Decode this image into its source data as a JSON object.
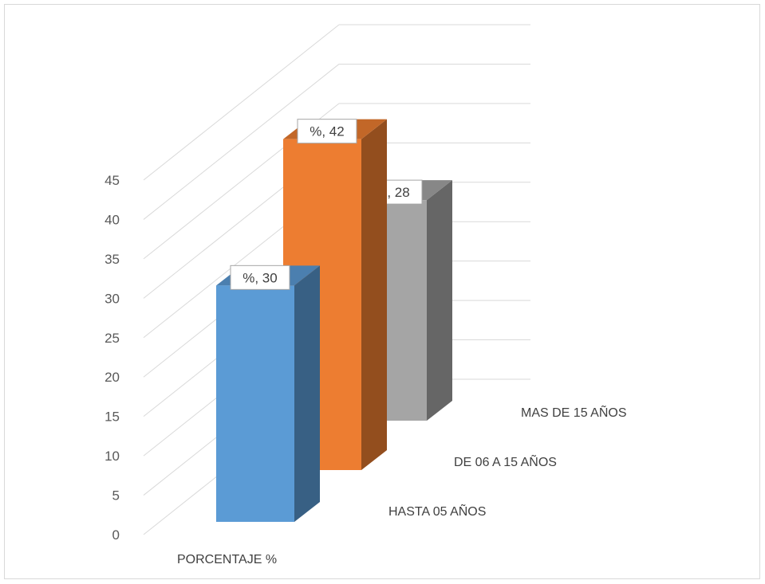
{
  "chart_data": {
    "type": "bar",
    "subtype": "3d-column-depth",
    "title": "",
    "xlabel": "",
    "ylabel": "",
    "categories": [
      "PORCENTAJE %"
    ],
    "series": [
      {
        "name": "HASTA 05 AÑOS",
        "values": [
          30
        ],
        "data_label": "%, 30",
        "color": "#5b9bd5"
      },
      {
        "name": "DE 06 A 15 AÑOS",
        "values": [
          42
        ],
        "data_label": "%, 42",
        "color": "#ed7d31"
      },
      {
        "name": "MAS DE 15 AÑOS",
        "values": [
          28
        ],
        "data_label": "%, 28",
        "color": "#a5a5a5"
      }
    ],
    "yticks": [
      "0",
      "5",
      "10",
      "15",
      "20",
      "25",
      "30",
      "35",
      "40",
      "45"
    ],
    "ylim": [
      0,
      45
    ],
    "grid": true,
    "legend": "none"
  }
}
